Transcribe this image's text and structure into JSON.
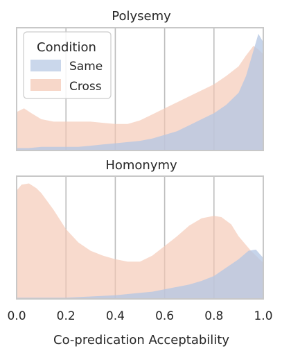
{
  "chart_data": {
    "type": "area",
    "subtype": "kde-density",
    "xlabel": "Co-predication Acceptability",
    "xlim": [
      0.0,
      1.0
    ],
    "xticks": [
      "0.0",
      "0.2",
      "0.4",
      "0.6",
      "0.8",
      "1.0"
    ],
    "x_tick_values": [
      0.0,
      0.2,
      0.4,
      0.6,
      0.8,
      1.0
    ],
    "grid": "vertical",
    "y_axis": "hidden",
    "legend": {
      "title": "Condition",
      "placement": "upper-left (first panel only)",
      "entries": [
        {
          "label": "Same",
          "color": "#b3c6e3"
        },
        {
          "label": "Cross",
          "color": "#f4c6b2"
        }
      ]
    },
    "colors": {
      "same": "#b3c6e3",
      "cross": "#f4c6b2",
      "overlap": "#cdb9c6",
      "frame": "#c8c8c8",
      "grid": "#bdbdbd"
    },
    "panels": [
      {
        "title": "Polysemy",
        "ymax": 1.0,
        "series": [
          {
            "name": "Same",
            "x": [
              0.0,
              0.05,
              0.1,
              0.15,
              0.2,
              0.25,
              0.3,
              0.35,
              0.4,
              0.45,
              0.5,
              0.55,
              0.6,
              0.65,
              0.7,
              0.75,
              0.8,
              0.85,
              0.9,
              0.93,
              0.96,
              0.98,
              1.0
            ],
            "y": [
              0.02,
              0.02,
              0.03,
              0.03,
              0.03,
              0.03,
              0.04,
              0.05,
              0.06,
              0.07,
              0.08,
              0.1,
              0.13,
              0.16,
              0.21,
              0.26,
              0.31,
              0.38,
              0.48,
              0.62,
              0.83,
              0.97,
              0.9
            ]
          },
          {
            "name": "Cross",
            "x": [
              0.0,
              0.03,
              0.06,
              0.1,
              0.15,
              0.2,
              0.25,
              0.3,
              0.35,
              0.4,
              0.45,
              0.5,
              0.55,
              0.6,
              0.65,
              0.7,
              0.75,
              0.8,
              0.85,
              0.9,
              0.93,
              0.96,
              0.98,
              1.0
            ],
            "y": [
              0.32,
              0.35,
              0.31,
              0.26,
              0.24,
              0.24,
              0.24,
              0.24,
              0.23,
              0.22,
              0.22,
              0.25,
              0.3,
              0.35,
              0.4,
              0.45,
              0.5,
              0.55,
              0.62,
              0.7,
              0.79,
              0.87,
              0.84,
              0.8
            ]
          }
        ]
      },
      {
        "title": "Homonymy",
        "ymax": 1.0,
        "series": [
          {
            "name": "Same",
            "x": [
              0.0,
              0.1,
              0.2,
              0.3,
              0.4,
              0.5,
              0.55,
              0.6,
              0.65,
              0.7,
              0.75,
              0.8,
              0.85,
              0.9,
              0.94,
              0.97,
              1.0
            ],
            "y": [
              0.01,
              0.01,
              0.01,
              0.02,
              0.03,
              0.05,
              0.06,
              0.08,
              0.1,
              0.12,
              0.15,
              0.19,
              0.26,
              0.33,
              0.4,
              0.41,
              0.34
            ]
          },
          {
            "name": "Cross",
            "x": [
              0.0,
              0.02,
              0.05,
              0.08,
              0.1,
              0.15,
              0.2,
              0.25,
              0.3,
              0.35,
              0.4,
              0.45,
              0.5,
              0.55,
              0.6,
              0.65,
              0.7,
              0.75,
              0.8,
              0.83,
              0.87,
              0.9,
              0.95,
              1.0
            ],
            "y": [
              0.9,
              0.95,
              0.96,
              0.92,
              0.88,
              0.74,
              0.58,
              0.47,
              0.4,
              0.36,
              0.33,
              0.31,
              0.31,
              0.36,
              0.44,
              0.52,
              0.61,
              0.67,
              0.69,
              0.68,
              0.62,
              0.52,
              0.4,
              0.3
            ]
          }
        ]
      }
    ]
  }
}
